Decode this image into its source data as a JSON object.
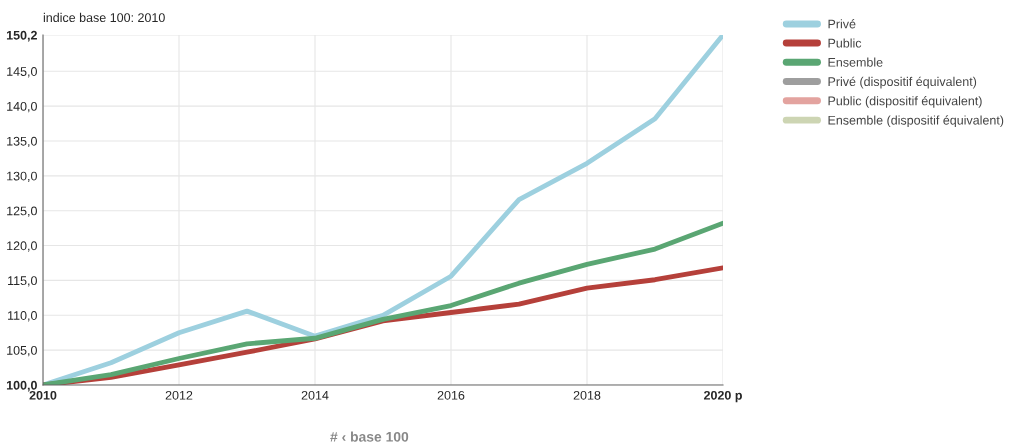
{
  "chart_data": {
    "type": "line",
    "ylabel": "indice base 100: 2010",
    "x": [
      2010,
      2011,
      2012,
      2013,
      2014,
      2015,
      2016,
      2017,
      2018,
      2019,
      2020
    ],
    "series": [
      {
        "name": "Privé",
        "color": "#9dd0df",
        "values": [
          100,
          103.2,
          107.5,
          110.6,
          107.0,
          110.0,
          115.6,
          126.6,
          131.8,
          138.2,
          150.2
        ]
      },
      {
        "name": "Public",
        "color": "#b5403a",
        "values": [
          100,
          101.1,
          102.9,
          104.7,
          106.6,
          109.2,
          110.4,
          111.6,
          113.9,
          115.1,
          116.8
        ]
      },
      {
        "name": "Ensemble",
        "color": "#5aa673",
        "values": [
          100,
          101.5,
          103.8,
          105.9,
          106.7,
          109.4,
          111.4,
          114.6,
          117.3,
          119.5,
          123.2
        ]
      },
      {
        "name": "Privé (dispositif équivalent)",
        "color": "#9e9e9e",
        "values": [
          null,
          null,
          null,
          null,
          null,
          null,
          null,
          null,
          null,
          null,
          null
        ]
      },
      {
        "name": "Public (dispositif équivalent)",
        "color": "#e3a39f",
        "values": [
          null,
          null,
          null,
          null,
          null,
          null,
          null,
          null,
          null,
          null,
          null
        ]
      },
      {
        "name": "Ensemble (dispositif équivalent)",
        "color": "#cdd5b3",
        "values": [
          null,
          null,
          null,
          null,
          null,
          null,
          null,
          null,
          null,
          null,
          null
        ]
      }
    ],
    "xlim": [
      2010,
      2020
    ],
    "xticks": [
      2010,
      2012,
      2014,
      2016,
      2018,
      {
        "value": 2020,
        "label": "2020 p"
      }
    ],
    "ylim": [
      100,
      150.2
    ],
    "yticks": [
      {
        "value": 100,
        "label": "100,0"
      },
      {
        "value": 105,
        "label": "105,0"
      },
      {
        "value": 110,
        "label": "110,0"
      },
      {
        "value": 115,
        "label": "115,0"
      },
      {
        "value": 120,
        "label": "120,0"
      },
      {
        "value": 125,
        "label": "125,0"
      },
      {
        "value": 130,
        "label": "130,0"
      },
      {
        "value": 135,
        "label": "135,0"
      },
      {
        "value": 140,
        "label": "140,0"
      },
      {
        "value": 145,
        "label": "145,0"
      },
      {
        "value": 150.2,
        "label": "150,2"
      }
    ],
    "grid": true,
    "legend": "top right",
    "marker": "none",
    "line_style": "solid",
    "annotations": [
      "# ‹ base 100"
    ]
  }
}
